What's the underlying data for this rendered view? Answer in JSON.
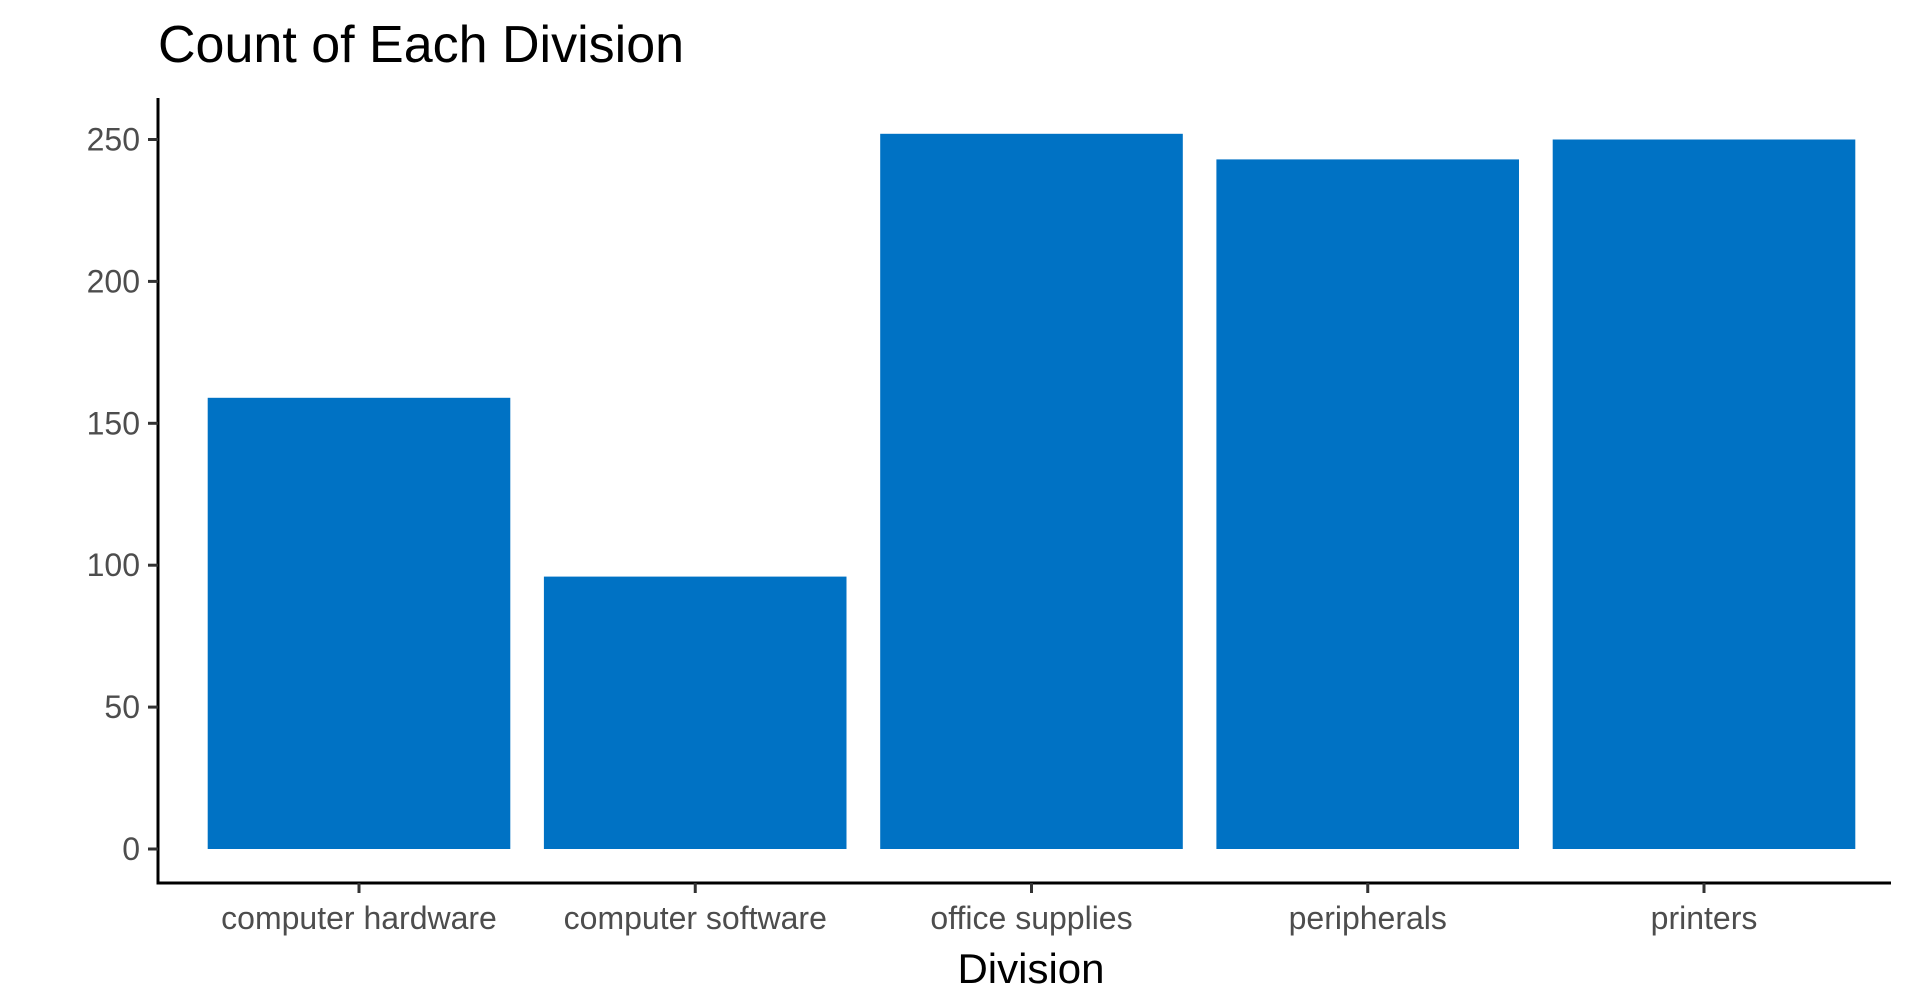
{
  "chart_data": {
    "type": "bar",
    "title": "Count of Each Division",
    "xlabel": "Division",
    "ylabel": "",
    "categories": [
      "computer hardware",
      "computer software",
      "office supplies",
      "peripherals",
      "printers"
    ],
    "values": [
      159,
      96,
      252,
      243,
      250
    ],
    "ylim": [
      0,
      264
    ],
    "yticks": [
      0,
      50,
      100,
      150,
      200,
      250
    ],
    "bar_color": "#0072c4",
    "grid": false,
    "legend": "none"
  }
}
